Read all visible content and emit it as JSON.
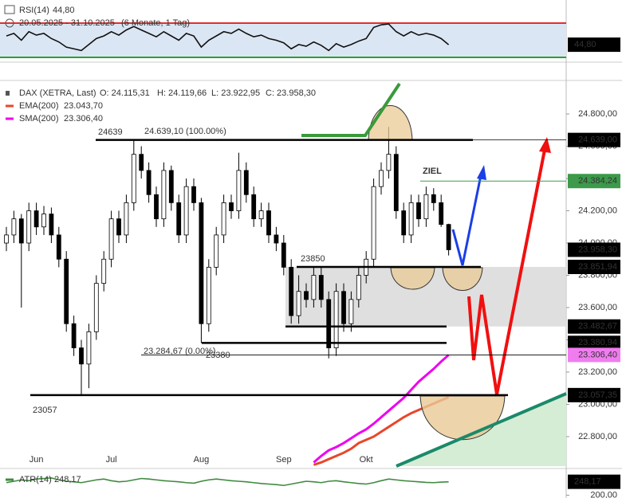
{
  "chart_data": [
    {
      "type": "line",
      "title": "RSI(14)",
      "subtitle": "20.05.2025 - 31.10.2025",
      "note": "(6 Monate, 1 Tag)",
      "series": [
        {
          "name": "RSI(14)",
          "value_label": "44,80",
          "color": "#111111",
          "values": [
            55,
            58,
            50,
            60,
            56,
            58,
            52,
            48,
            42,
            40,
            38,
            45,
            52,
            55,
            60,
            56,
            62,
            66,
            62,
            58,
            54,
            60,
            55,
            50,
            58,
            55,
            42,
            50,
            55,
            60,
            58,
            63,
            58,
            54,
            56,
            52,
            50,
            47,
            40,
            45,
            43,
            48,
            44,
            38,
            46,
            42,
            45,
            49,
            52,
            65,
            68,
            69,
            60,
            55,
            60,
            56,
            58,
            56,
            52,
            44.8
          ]
        }
      ],
      "bands": [
        {
          "value": 70,
          "color": "#e03030"
        },
        {
          "value": 30,
          "color": "#2ca02c"
        }
      ],
      "ylim": [
        27.2,
        97
      ]
    },
    {
      "type": "candlestick",
      "title": "DAX (XETRA, Last)",
      "ohlc_text": [
        "O: 24.115,31",
        "H: 24.119,66",
        "L: 23.922,95",
        "C: 23.958,30"
      ],
      "categories": [
        null,
        null,
        null,
        null,
        "Jun",
        null,
        null,
        null,
        null,
        null,
        null,
        null,
        null,
        null,
        "Jul",
        null,
        null,
        null,
        null,
        null,
        null,
        null,
        null,
        null,
        null,
        null,
        "Aug",
        null,
        null,
        null,
        null,
        null,
        null,
        null,
        null,
        null,
        null,
        "Sep",
        null,
        null,
        null,
        null,
        null,
        null,
        null,
        null,
        null,
        null,
        "Okt",
        null,
        null,
        null,
        null,
        null,
        null,
        null,
        null,
        null,
        null,
        null
      ],
      "open": [
        24000,
        24050,
        24150,
        24000,
        24200,
        24100,
        24180,
        24050,
        23900,
        23500,
        23350,
        23250,
        23450,
        23750,
        23900,
        24150,
        24050,
        24250,
        24550,
        24450,
        24300,
        24150,
        24450,
        24250,
        24050,
        24350,
        24250,
        23500,
        23850,
        24050,
        24250,
        24200,
        24450,
        24300,
        24150,
        24200,
        24050,
        24000,
        23850,
        23550,
        23700,
        23650,
        23800,
        23650,
        23350,
        23700,
        23500,
        23650,
        23800,
        23900,
        24350,
        24450,
        24550,
        24200,
        24050,
        24250,
        24150,
        24300,
        24250,
        24115.31
      ],
      "high": [
        24100,
        24200,
        24180,
        24250,
        24250,
        24230,
        24220,
        24100,
        23950,
        23550,
        23400,
        23500,
        23800,
        23950,
        24200,
        24200,
        24300,
        24639,
        24600,
        24500,
        24350,
        24500,
        24480,
        24300,
        24400,
        24400,
        24280,
        23900,
        24100,
        24300,
        24300,
        24560,
        24500,
        24350,
        24250,
        24250,
        24100,
        24050,
        23900,
        23800,
        23750,
        23850,
        23850,
        23700,
        23750,
        23750,
        23700,
        23850,
        23950,
        24400,
        24500,
        24720,
        24600,
        24250,
        24300,
        24300,
        24350,
        24340,
        24300,
        24119.66
      ],
      "low": [
        23950,
        24000,
        23600,
        23950,
        24050,
        24050,
        24000,
        23850,
        23450,
        23300,
        23057,
        23100,
        23400,
        23700,
        23850,
        24000,
        24000,
        24200,
        24400,
        24250,
        24100,
        24100,
        24200,
        24000,
        24000,
        24200,
        23380,
        23450,
        23800,
        24000,
        24150,
        24150,
        24250,
        24100,
        24100,
        24000,
        23950,
        23800,
        23500,
        23500,
        23600,
        23600,
        23600,
        23285,
        23300,
        23450,
        23450,
        23600,
        23750,
        23850,
        24300,
        24400,
        24150,
        24000,
        24000,
        24100,
        24100,
        24200,
        24100,
        23922.95
      ],
      "close": [
        24050,
        24150,
        24000,
        24200,
        24100,
        24180,
        24050,
        23900,
        23500,
        23350,
        23250,
        23450,
        23750,
        23900,
        24150,
        24050,
        24250,
        24550,
        24450,
        24300,
        24150,
        24450,
        24250,
        24050,
        24350,
        24250,
        23500,
        23850,
        24050,
        24250,
        24200,
        24450,
        24300,
        24150,
        24200,
        24050,
        24000,
        23850,
        23550,
        23700,
        23650,
        23800,
        23650,
        23350,
        23700,
        23500,
        23650,
        23800,
        23900,
        24350,
        24450,
        24550,
        24200,
        24050,
        24250,
        24150,
        24300,
        24250,
        24115.31,
        23958.3
      ],
      "series": [
        {
          "name": "EMA(200)",
          "value_label": "23.043,70",
          "color": "#e8462a",
          "values": [
            null,
            null,
            null,
            null,
            null,
            null,
            null,
            null,
            null,
            null,
            null,
            null,
            null,
            null,
            null,
            null,
            null,
            null,
            null,
            null,
            null,
            null,
            null,
            null,
            null,
            null,
            null,
            null,
            null,
            null,
            null,
            null,
            null,
            null,
            null,
            null,
            null,
            null,
            null,
            null,
            null,
            22625,
            22640,
            22660,
            22680,
            22700,
            22725,
            22760,
            22780,
            22800,
            22830,
            22860,
            22890,
            22920,
            22945,
            22965,
            22985,
            23005,
            23025,
            23043.7
          ]
        },
        {
          "name": "SMA(200)",
          "value_label": "23.306,40",
          "color": "#ee00ee",
          "values": [
            null,
            null,
            null,
            null,
            null,
            null,
            null,
            null,
            null,
            null,
            null,
            null,
            null,
            null,
            null,
            null,
            null,
            null,
            null,
            null,
            null,
            null,
            null,
            null,
            null,
            null,
            null,
            null,
            null,
            null,
            null,
            null,
            null,
            null,
            null,
            null,
            null,
            null,
            null,
            null,
            null,
            22640,
            22680,
            22715,
            22735,
            22760,
            22790,
            22820,
            22845,
            22880,
            22920,
            22960,
            23000,
            23040,
            23090,
            23140,
            23180,
            23220,
            23265,
            23306.4
          ]
        }
      ],
      "ylim": [
        22617,
        24988
      ],
      "yticks": [
        {
          "value": 22800,
          "label": "22.800,00"
        },
        {
          "value": 23000,
          "label": "23.000,00"
        },
        {
          "value": 23200,
          "label": "23.200,00"
        },
        {
          "value": 23400,
          "label": "23.400,00"
        },
        {
          "value": 23600,
          "label": "23.600,00"
        },
        {
          "value": 23800,
          "label": "23.800,00"
        },
        {
          "value": 24000,
          "label": "24.000,00"
        },
        {
          "value": 24200,
          "label": "24.200,00"
        },
        {
          "value": 24400,
          "label": "24.400,00"
        },
        {
          "value": 24600,
          "label": "24.600,00"
        },
        {
          "value": 24800,
          "label": "24.800,00"
        }
      ],
      "levels": [
        {
          "value": 24639,
          "label": "24.639,00",
          "color": "#000000"
        },
        {
          "value": 24384.24,
          "label": "24.384,24",
          "color": "#3c9a4a"
        },
        {
          "value": 23958.3,
          "label": "23.958,30",
          "color": "#000000"
        },
        {
          "value": 23851.94,
          "label": "23.851,94",
          "color": "#000000"
        },
        {
          "value": 23482.67,
          "label": "23.482,67",
          "color": "#000000"
        },
        {
          "value": 23380.94,
          "label": "23.380,94",
          "color": "#000000"
        },
        {
          "value": 23306.4,
          "label": "23.306,40",
          "color": "#f07cf0"
        },
        {
          "value": 23057.35,
          "label": "23.057,35",
          "color": "#000000"
        }
      ],
      "annotations": [
        "24639",
        "24.639,10 (100.00%)",
        "23850",
        "ZIEL",
        "23.284,67 (0.00%)",
        "23380",
        "23057"
      ]
    },
    {
      "type": "line",
      "title": "ATR(14)",
      "series": [
        {
          "name": "ATR(14)",
          "value_label": "248,17",
          "color": "#3f8a3f",
          "values": [
            245,
            250,
            255,
            252,
            258,
            260,
            262,
            255,
            250,
            248,
            245,
            250,
            255,
            258,
            252,
            248,
            250,
            255,
            260,
            258,
            255,
            252,
            250,
            248,
            245,
            243,
            250,
            255,
            258,
            255,
            252,
            250,
            248,
            245,
            242,
            240,
            238,
            235,
            240,
            245,
            250,
            248,
            245,
            250,
            252,
            248,
            245,
            242,
            240,
            245,
            252,
            258,
            255,
            252,
            250,
            248,
            246,
            245,
            247,
            248.17
          ]
        }
      ],
      "ylim": [
        190,
        290
      ],
      "yticks": [
        {
          "value": 200,
          "label": "200,00"
        }
      ]
    }
  ]
}
